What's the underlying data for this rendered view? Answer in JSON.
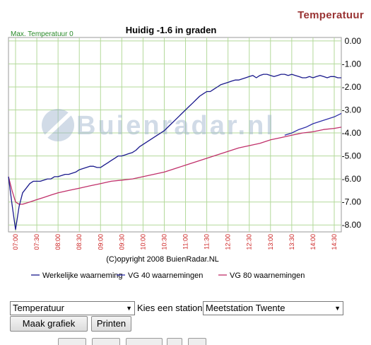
{
  "page_header": "Temperatuur",
  "controls": {
    "type_select_value": "Temperatuur",
    "station_label": "Kies een station:",
    "station_select_value": "Meetstation Twente",
    "make_button": "Maak grafiek",
    "print_button": "Printen"
  },
  "colors": {
    "observed": "#1a1a8c",
    "vg40": "#2f2fa8",
    "vg80": "#c0306a",
    "grid": "#b3d99a",
    "tick_label": "#cc2222",
    "watermark": "#9ab0cc",
    "maxlabel": "#2a8a2a"
  },
  "chart_data": {
    "type": "line",
    "title": "Huidig -1.6 in graden",
    "max_label": "Max. Temperatuur 0",
    "watermark": "Buienradar.nl",
    "copyright": "(C)opyright 2008 BuienRadar.NL",
    "ylim": [
      -8.3,
      0.15
    ],
    "yticks": [
      "0.00",
      "-1.00",
      "-2.00",
      "-3.00",
      "-4.00",
      "-5.00",
      "-6.00",
      "-7.00",
      "-8.00"
    ],
    "ytick_values": [
      0,
      -1,
      -2,
      -3,
      -4,
      -5,
      -6,
      -7,
      -8
    ],
    "xlim": [
      "06:50",
      "14:40"
    ],
    "xticks": [
      "07:00",
      "07:30",
      "08:00",
      "08:30",
      "09:00",
      "09:30",
      "10:00",
      "10:30",
      "11:00",
      "11:30",
      "12:00",
      "12:30",
      "13:00",
      "13:30",
      "14:00",
      "14:30"
    ],
    "grid": true,
    "legend_position": "bottom",
    "series": [
      {
        "name": "Werkelijke waarneming",
        "color_key": "observed",
        "x": [
          "06:50",
          "06:55",
          "07:00",
          "07:05",
          "07:10",
          "07:15",
          "07:20",
          "07:25",
          "07:30",
          "07:35",
          "07:40",
          "07:45",
          "07:50",
          "07:55",
          "08:00",
          "08:05",
          "08:10",
          "08:15",
          "08:20",
          "08:25",
          "08:30",
          "08:35",
          "08:40",
          "08:45",
          "08:50",
          "08:55",
          "09:00",
          "09:05",
          "09:10",
          "09:15",
          "09:20",
          "09:25",
          "09:30",
          "09:35",
          "09:40",
          "09:45",
          "09:50",
          "09:55",
          "10:00",
          "10:05",
          "10:10",
          "10:15",
          "10:20",
          "10:25",
          "10:30",
          "10:35",
          "10:40",
          "10:45",
          "10:50",
          "10:55",
          "11:00",
          "11:05",
          "11:10",
          "11:15",
          "11:20",
          "11:25",
          "11:30",
          "11:35",
          "11:40",
          "11:45",
          "11:50",
          "11:55",
          "12:00",
          "12:05",
          "12:10",
          "12:15",
          "12:20",
          "12:25",
          "12:30",
          "12:35",
          "12:40",
          "12:45",
          "12:50",
          "12:55",
          "13:00",
          "13:05",
          "13:10",
          "13:15",
          "13:20",
          "13:25",
          "13:30",
          "13:35",
          "13:40",
          "13:45",
          "13:50",
          "13:55",
          "14:00",
          "14:05",
          "14:10",
          "14:15",
          "14:20",
          "14:25",
          "14:30",
          "14:35",
          "14:40"
        ],
        "values": [
          -5.9,
          -7.1,
          -8.2,
          -7.2,
          -6.6,
          -6.4,
          -6.2,
          -6.1,
          -6.1,
          -6.1,
          -6.05,
          -6.0,
          -6.0,
          -5.9,
          -5.9,
          -5.85,
          -5.8,
          -5.8,
          -5.75,
          -5.7,
          -5.6,
          -5.55,
          -5.5,
          -5.45,
          -5.45,
          -5.5,
          -5.5,
          -5.4,
          -5.3,
          -5.2,
          -5.1,
          -5.0,
          -5.0,
          -4.95,
          -4.9,
          -4.85,
          -4.75,
          -4.6,
          -4.5,
          -4.4,
          -4.3,
          -4.2,
          -4.1,
          -4.0,
          -3.9,
          -3.75,
          -3.6,
          -3.45,
          -3.3,
          -3.15,
          -3.0,
          -2.85,
          -2.7,
          -2.55,
          -2.4,
          -2.3,
          -2.2,
          -2.2,
          -2.1,
          -2.0,
          -1.9,
          -1.85,
          -1.8,
          -1.75,
          -1.7,
          -1.7,
          -1.65,
          -1.6,
          -1.55,
          -1.5,
          -1.6,
          -1.5,
          -1.45,
          -1.45,
          -1.5,
          -1.55,
          -1.5,
          -1.45,
          -1.45,
          -1.5,
          -1.45,
          -1.5,
          -1.55,
          -1.6,
          -1.6,
          -1.55,
          -1.6,
          -1.55,
          -1.5,
          -1.55,
          -1.6,
          -1.55,
          -1.55,
          -1.6,
          -1.6
        ]
      },
      {
        "name": "VG 40 waarnemingen",
        "color_key": "vg40",
        "x": [
          "13:20",
          "13:30",
          "13:40",
          "13:50",
          "14:00",
          "14:10",
          "14:20",
          "14:30",
          "14:40"
        ],
        "values": [
          -4.1,
          -4.0,
          -3.85,
          -3.75,
          -3.6,
          -3.5,
          -3.4,
          -3.3,
          -3.15
        ]
      },
      {
        "name": "VG 80 waarnemingen",
        "color_key": "vg80",
        "x": [
          "06:50",
          "06:55",
          "07:00",
          "07:05",
          "07:10",
          "07:20",
          "07:30",
          "07:40",
          "07:50",
          "08:00",
          "08:15",
          "08:30",
          "08:45",
          "09:00",
          "09:15",
          "09:30",
          "09:45",
          "10:00",
          "10:15",
          "10:30",
          "10:45",
          "11:00",
          "11:15",
          "11:30",
          "11:45",
          "12:00",
          "12:15",
          "12:30",
          "12:45",
          "13:00",
          "13:15",
          "13:30",
          "13:45",
          "14:00",
          "14:15",
          "14:30",
          "14:40"
        ],
        "values": [
          -5.9,
          -6.5,
          -7.0,
          -7.1,
          -7.1,
          -7.0,
          -6.9,
          -6.8,
          -6.7,
          -6.6,
          -6.5,
          -6.4,
          -6.3,
          -6.2,
          -6.1,
          -6.05,
          -6.0,
          -5.9,
          -5.8,
          -5.7,
          -5.55,
          -5.4,
          -5.25,
          -5.1,
          -4.95,
          -4.8,
          -4.65,
          -4.55,
          -4.45,
          -4.3,
          -4.2,
          -4.1,
          -4.0,
          -3.95,
          -3.85,
          -3.8,
          -3.75
        ]
      }
    ]
  }
}
